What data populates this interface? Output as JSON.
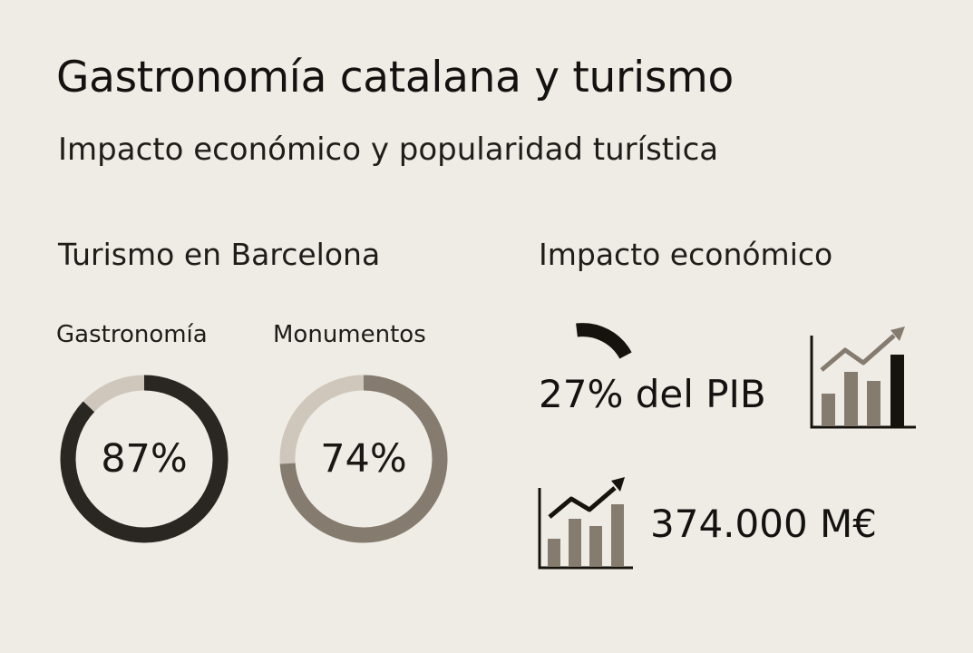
{
  "header": {
    "title": "Gastronomía catalana y turismo",
    "subtitle": "Impacto económico y popularidad turística"
  },
  "tourism": {
    "heading": "Turismo en Barcelona",
    "items": [
      {
        "label": "Gastronomía",
        "value_text": "87%",
        "fraction": 0.87,
        "color": "#2a2622",
        "track_color": "#cfc7bb"
      },
      {
        "label": "Monumentos",
        "value_text": "74%",
        "fraction": 0.74,
        "color": "#857b6e",
        "track_color": "#cfc7bb"
      }
    ]
  },
  "economy": {
    "heading": "Impacto económico",
    "pib_text": "27% del PIB",
    "pib_fraction": 0.27,
    "revenue_text": "374.000 M€"
  },
  "icons": {
    "arc": "partial-arc-icon",
    "chart1": "bar-chart-trend-icon",
    "chart2": "bar-chart-trend-icon"
  },
  "colors": {
    "background": "#efece6",
    "text": "#141210",
    "dark": "#16130f",
    "taupe": "#857b6e"
  }
}
